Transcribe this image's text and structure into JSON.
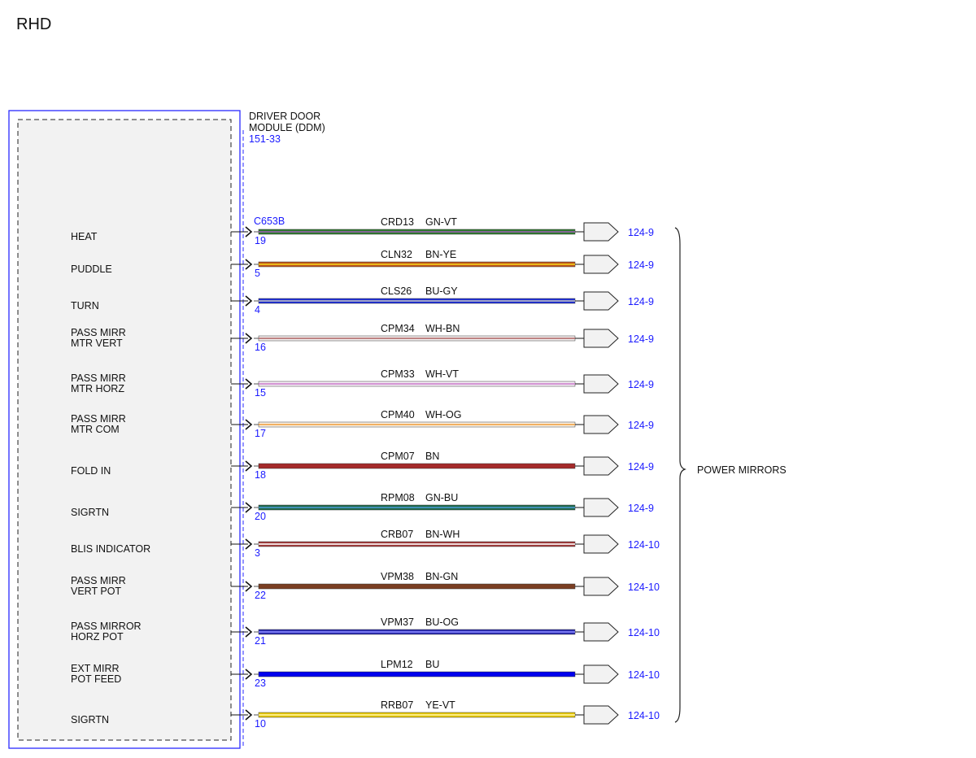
{
  "diagram": {
    "variant": "RHD",
    "module": {
      "name_line1": "DRIVER DOOR",
      "name_line2": "MODULE (DDM)",
      "ref": "151-33",
      "connector": "C653B"
    },
    "group_label": "POWER MIRRORS",
    "circuits": [
      {
        "label": [
          "HEAT"
        ],
        "pin": "19",
        "circuit": "CRD13",
        "color_code": "GN-VT",
        "dest": "124-9",
        "base": "#2e7d2e",
        "stripe": "#9a5fb0"
      },
      {
        "label": [
          "PUDDLE"
        ],
        "pin": "5",
        "circuit": "CLN32",
        "color_code": "BN-YE",
        "dest": "124-9",
        "base": "#c0541a",
        "stripe": "#f2d21b"
      },
      {
        "label": [
          "TURN"
        ],
        "pin": "4",
        "circuit": "CLS26",
        "color_code": "BU-GY",
        "dest": "124-9",
        "base": "#1f2fd8",
        "stripe": "#bfbfbf"
      },
      {
        "label": [
          "PASS MIRR",
          "MTR VERT"
        ],
        "pin": "16",
        "circuit": "CPM34",
        "color_code": "WH-BN",
        "dest": "124-9",
        "base": "#f4f0f0",
        "stripe": "#b06a6a"
      },
      {
        "label": [
          "PASS MIRR",
          "MTR HORZ"
        ],
        "pin": "15",
        "circuit": "CPM33",
        "color_code": "WH-VT",
        "dest": "124-9",
        "base": "#f7eef7",
        "stripe": "#c87fc8"
      },
      {
        "label": [
          "PASS MIRR",
          "MTR COM"
        ],
        "pin": "17",
        "circuit": "CPM40",
        "color_code": "WH-OG",
        "dest": "124-9",
        "base": "#fbf3e8",
        "stripe": "#f0a040"
      },
      {
        "label": [
          "FOLD IN"
        ],
        "pin": "18",
        "circuit": "CPM07",
        "color_code": "BN",
        "dest": "124-9",
        "base": "#a52a2a",
        "stripe": "#a52a2a"
      },
      {
        "label": [
          "SIGRTN"
        ],
        "pin": "20",
        "circuit": "RPM08",
        "color_code": "GN-BU",
        "dest": "124-9",
        "base": "#1f6a4a",
        "stripe": "#4a9ad0"
      },
      {
        "label": [
          "BLIS INDICATOR"
        ],
        "pin": "3",
        "circuit": "CRB07",
        "color_code": "BN-WH",
        "dest": "124-10",
        "base": "#a33a3a",
        "stripe": "#ffffff"
      },
      {
        "label": [
          "PASS MIRR",
          "VERT POT"
        ],
        "pin": "22",
        "circuit": "VPM38",
        "color_code": "BN-GN",
        "dest": "124-10",
        "base": "#7a3e22",
        "stripe": "#7a3e22"
      },
      {
        "label": [
          "PASS MIRROR",
          "HORZ POT"
        ],
        "pin": "21",
        "circuit": "VPM37",
        "color_code": "BU-OG",
        "dest": "124-10",
        "base": "#2a2ab0",
        "stripe": "#8c8cff"
      },
      {
        "label": [
          "EXT MIRR",
          "POT FEED"
        ],
        "pin": "23",
        "circuit": "LPM12",
        "color_code": "BU",
        "dest": "124-10",
        "base": "#0000ee",
        "stripe": "#0000ee"
      },
      {
        "label": [
          "SIGRTN"
        ],
        "pin": "10",
        "circuit": "RRB07",
        "color_code": "YE-VT",
        "dest": "124-10",
        "base": "#e6c800",
        "stripe": "#fff3a0"
      }
    ]
  }
}
